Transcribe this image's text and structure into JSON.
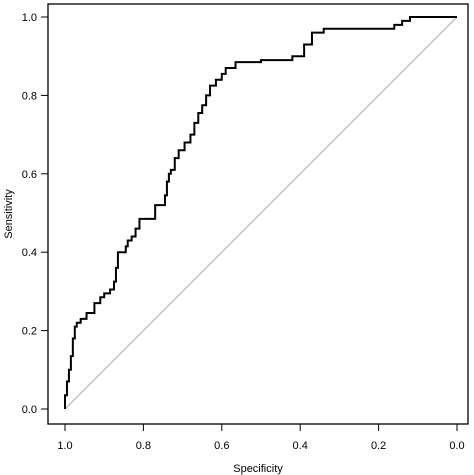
{
  "chart_data": {
    "type": "line",
    "title": "",
    "xlabel": "Specificity",
    "ylabel": "Sensitivity",
    "x_reversed": true,
    "xlim": [
      1.0,
      0.0
    ],
    "ylim": [
      0.0,
      1.0
    ],
    "xticks": [
      "1.0",
      "0.8",
      "0.6",
      "0.4",
      "0.2",
      "0.0"
    ],
    "yticks": [
      "0.0",
      "0.2",
      "0.4",
      "0.6",
      "0.8",
      "1.0"
    ],
    "grid": false,
    "legend": "none",
    "reference_line": {
      "from": [
        1.0,
        0.0
      ],
      "to": [
        0.0,
        1.0
      ],
      "color": "#aaaaaa"
    },
    "series": [
      {
        "color": "#000000",
        "points": [
          [
            1.0,
            0.0
          ],
          [
            1.0,
            0.035
          ],
          [
            0.995,
            0.035
          ],
          [
            0.995,
            0.07
          ],
          [
            0.99,
            0.07
          ],
          [
            0.99,
            0.1
          ],
          [
            0.985,
            0.1
          ],
          [
            0.985,
            0.135
          ],
          [
            0.98,
            0.135
          ],
          [
            0.98,
            0.18
          ],
          [
            0.975,
            0.18
          ],
          [
            0.975,
            0.21
          ],
          [
            0.97,
            0.21
          ],
          [
            0.97,
            0.22
          ],
          [
            0.96,
            0.22
          ],
          [
            0.96,
            0.23
          ],
          [
            0.945,
            0.23
          ],
          [
            0.945,
            0.245
          ],
          [
            0.925,
            0.245
          ],
          [
            0.925,
            0.27
          ],
          [
            0.91,
            0.27
          ],
          [
            0.91,
            0.285
          ],
          [
            0.9,
            0.285
          ],
          [
            0.9,
            0.295
          ],
          [
            0.885,
            0.295
          ],
          [
            0.885,
            0.305
          ],
          [
            0.875,
            0.305
          ],
          [
            0.875,
            0.325
          ],
          [
            0.87,
            0.325
          ],
          [
            0.87,
            0.36
          ],
          [
            0.865,
            0.36
          ],
          [
            0.865,
            0.4
          ],
          [
            0.845,
            0.4
          ],
          [
            0.845,
            0.415
          ],
          [
            0.84,
            0.415
          ],
          [
            0.84,
            0.43
          ],
          [
            0.83,
            0.43
          ],
          [
            0.83,
            0.44
          ],
          [
            0.82,
            0.44
          ],
          [
            0.82,
            0.46
          ],
          [
            0.81,
            0.46
          ],
          [
            0.81,
            0.485
          ],
          [
            0.77,
            0.485
          ],
          [
            0.77,
            0.52
          ],
          [
            0.745,
            0.52
          ],
          [
            0.745,
            0.545
          ],
          [
            0.74,
            0.545
          ],
          [
            0.74,
            0.58
          ],
          [
            0.735,
            0.58
          ],
          [
            0.735,
            0.6
          ],
          [
            0.73,
            0.6
          ],
          [
            0.73,
            0.61
          ],
          [
            0.72,
            0.61
          ],
          [
            0.72,
            0.64
          ],
          [
            0.71,
            0.64
          ],
          [
            0.71,
            0.66
          ],
          [
            0.695,
            0.66
          ],
          [
            0.695,
            0.68
          ],
          [
            0.68,
            0.68
          ],
          [
            0.68,
            0.7
          ],
          [
            0.67,
            0.7
          ],
          [
            0.67,
            0.73
          ],
          [
            0.66,
            0.73
          ],
          [
            0.66,
            0.755
          ],
          [
            0.65,
            0.755
          ],
          [
            0.65,
            0.775
          ],
          [
            0.64,
            0.775
          ],
          [
            0.64,
            0.8
          ],
          [
            0.63,
            0.8
          ],
          [
            0.63,
            0.825
          ],
          [
            0.615,
            0.825
          ],
          [
            0.615,
            0.84
          ],
          [
            0.6,
            0.84
          ],
          [
            0.6,
            0.855
          ],
          [
            0.59,
            0.855
          ],
          [
            0.59,
            0.87
          ],
          [
            0.565,
            0.87
          ],
          [
            0.565,
            0.885
          ],
          [
            0.5,
            0.885
          ],
          [
            0.5,
            0.89
          ],
          [
            0.42,
            0.89
          ],
          [
            0.42,
            0.9
          ],
          [
            0.39,
            0.9
          ],
          [
            0.39,
            0.93
          ],
          [
            0.37,
            0.93
          ],
          [
            0.37,
            0.96
          ],
          [
            0.34,
            0.96
          ],
          [
            0.34,
            0.97
          ],
          [
            0.16,
            0.97
          ],
          [
            0.16,
            0.98
          ],
          [
            0.14,
            0.98
          ],
          [
            0.14,
            0.99
          ],
          [
            0.12,
            0.99
          ],
          [
            0.12,
            1.0
          ],
          [
            0.0,
            1.0
          ]
        ]
      }
    ]
  }
}
